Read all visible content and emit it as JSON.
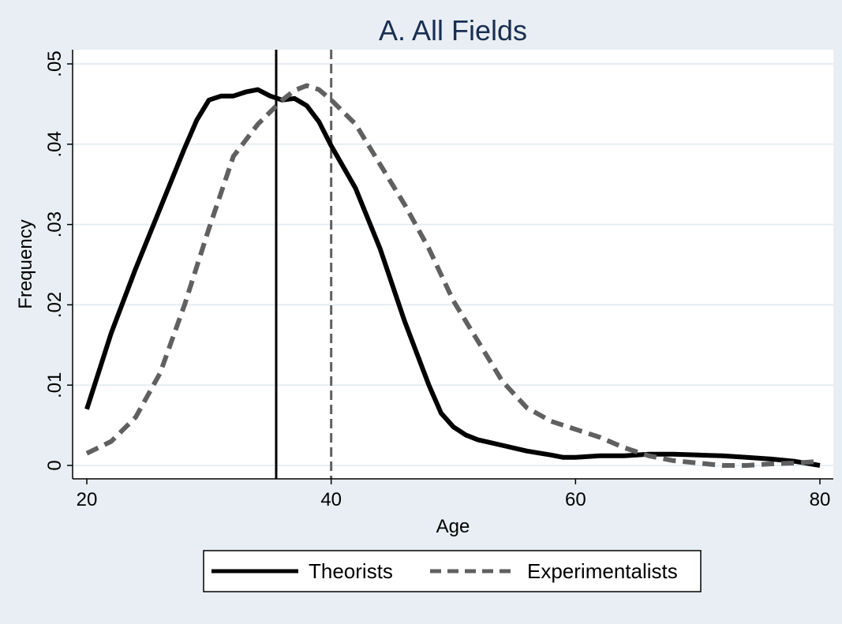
{
  "chart_data": {
    "type": "line",
    "title": "A. All Fields",
    "xlabel": "Age",
    "ylabel": "Frequency",
    "xlim": [
      20,
      80
    ],
    "ylim": [
      0,
      0.05
    ],
    "xticks": [
      20,
      40,
      60,
      80
    ],
    "xtick_labels": [
      "20",
      "40",
      "60",
      "80"
    ],
    "yticks": [
      0,
      0.01,
      0.02,
      0.03,
      0.04,
      0.05
    ],
    "ytick_labels": [
      "0",
      ".01",
      ".02",
      ".03",
      ".04",
      ".05"
    ],
    "grid": true,
    "legend_position": "bottom",
    "series": [
      {
        "name": "Theorists",
        "color": "#000000",
        "style": "solid",
        "x": [
          20,
          22,
          24,
          26,
          28,
          29,
          30,
          31,
          32,
          33,
          34,
          35,
          36,
          37,
          38,
          39,
          40,
          42,
          44,
          46,
          48,
          49,
          50,
          51,
          52,
          54,
          56,
          58,
          59,
          60,
          61,
          62,
          64,
          66,
          68,
          70,
          72,
          74,
          76,
          78,
          80
        ],
        "y": [
          0.007,
          0.0165,
          0.0245,
          0.032,
          0.0395,
          0.043,
          0.0455,
          0.046,
          0.046,
          0.0465,
          0.0468,
          0.046,
          0.0455,
          0.0457,
          0.0448,
          0.0428,
          0.0398,
          0.0345,
          0.027,
          0.018,
          0.01,
          0.0065,
          0.0048,
          0.0038,
          0.0032,
          0.0025,
          0.0018,
          0.0013,
          0.001,
          0.001,
          0.0011,
          0.0012,
          0.0012,
          0.0014,
          0.0014,
          0.0013,
          0.0012,
          0.001,
          0.0008,
          0.0005,
          0.0
        ]
      },
      {
        "name": "Experimentalists",
        "color": "#606060",
        "style": "dashed",
        "x": [
          20,
          22,
          24,
          26,
          28,
          30,
          32,
          34,
          36,
          37,
          38,
          39,
          40,
          42,
          44,
          46,
          48,
          50,
          52,
          54,
          56,
          58,
          60,
          62,
          64,
          66,
          68,
          70,
          72,
          74,
          76,
          78,
          80
        ],
        "y": [
          0.0015,
          0.003,
          0.006,
          0.0115,
          0.02,
          0.0295,
          0.0385,
          0.0425,
          0.0455,
          0.0467,
          0.0473,
          0.0468,
          0.0455,
          0.0425,
          0.0375,
          0.0325,
          0.027,
          0.0205,
          0.0155,
          0.0105,
          0.0072,
          0.0055,
          0.0045,
          0.0035,
          0.0022,
          0.0012,
          0.0006,
          0.0003,
          0.0,
          0.0,
          0.0002,
          0.0003,
          0.0005
        ]
      }
    ],
    "reference_lines": [
      {
        "x": 35.5,
        "color": "#000000",
        "style": "solid"
      },
      {
        "x": 40,
        "color": "#606060",
        "style": "dashed"
      }
    ]
  }
}
